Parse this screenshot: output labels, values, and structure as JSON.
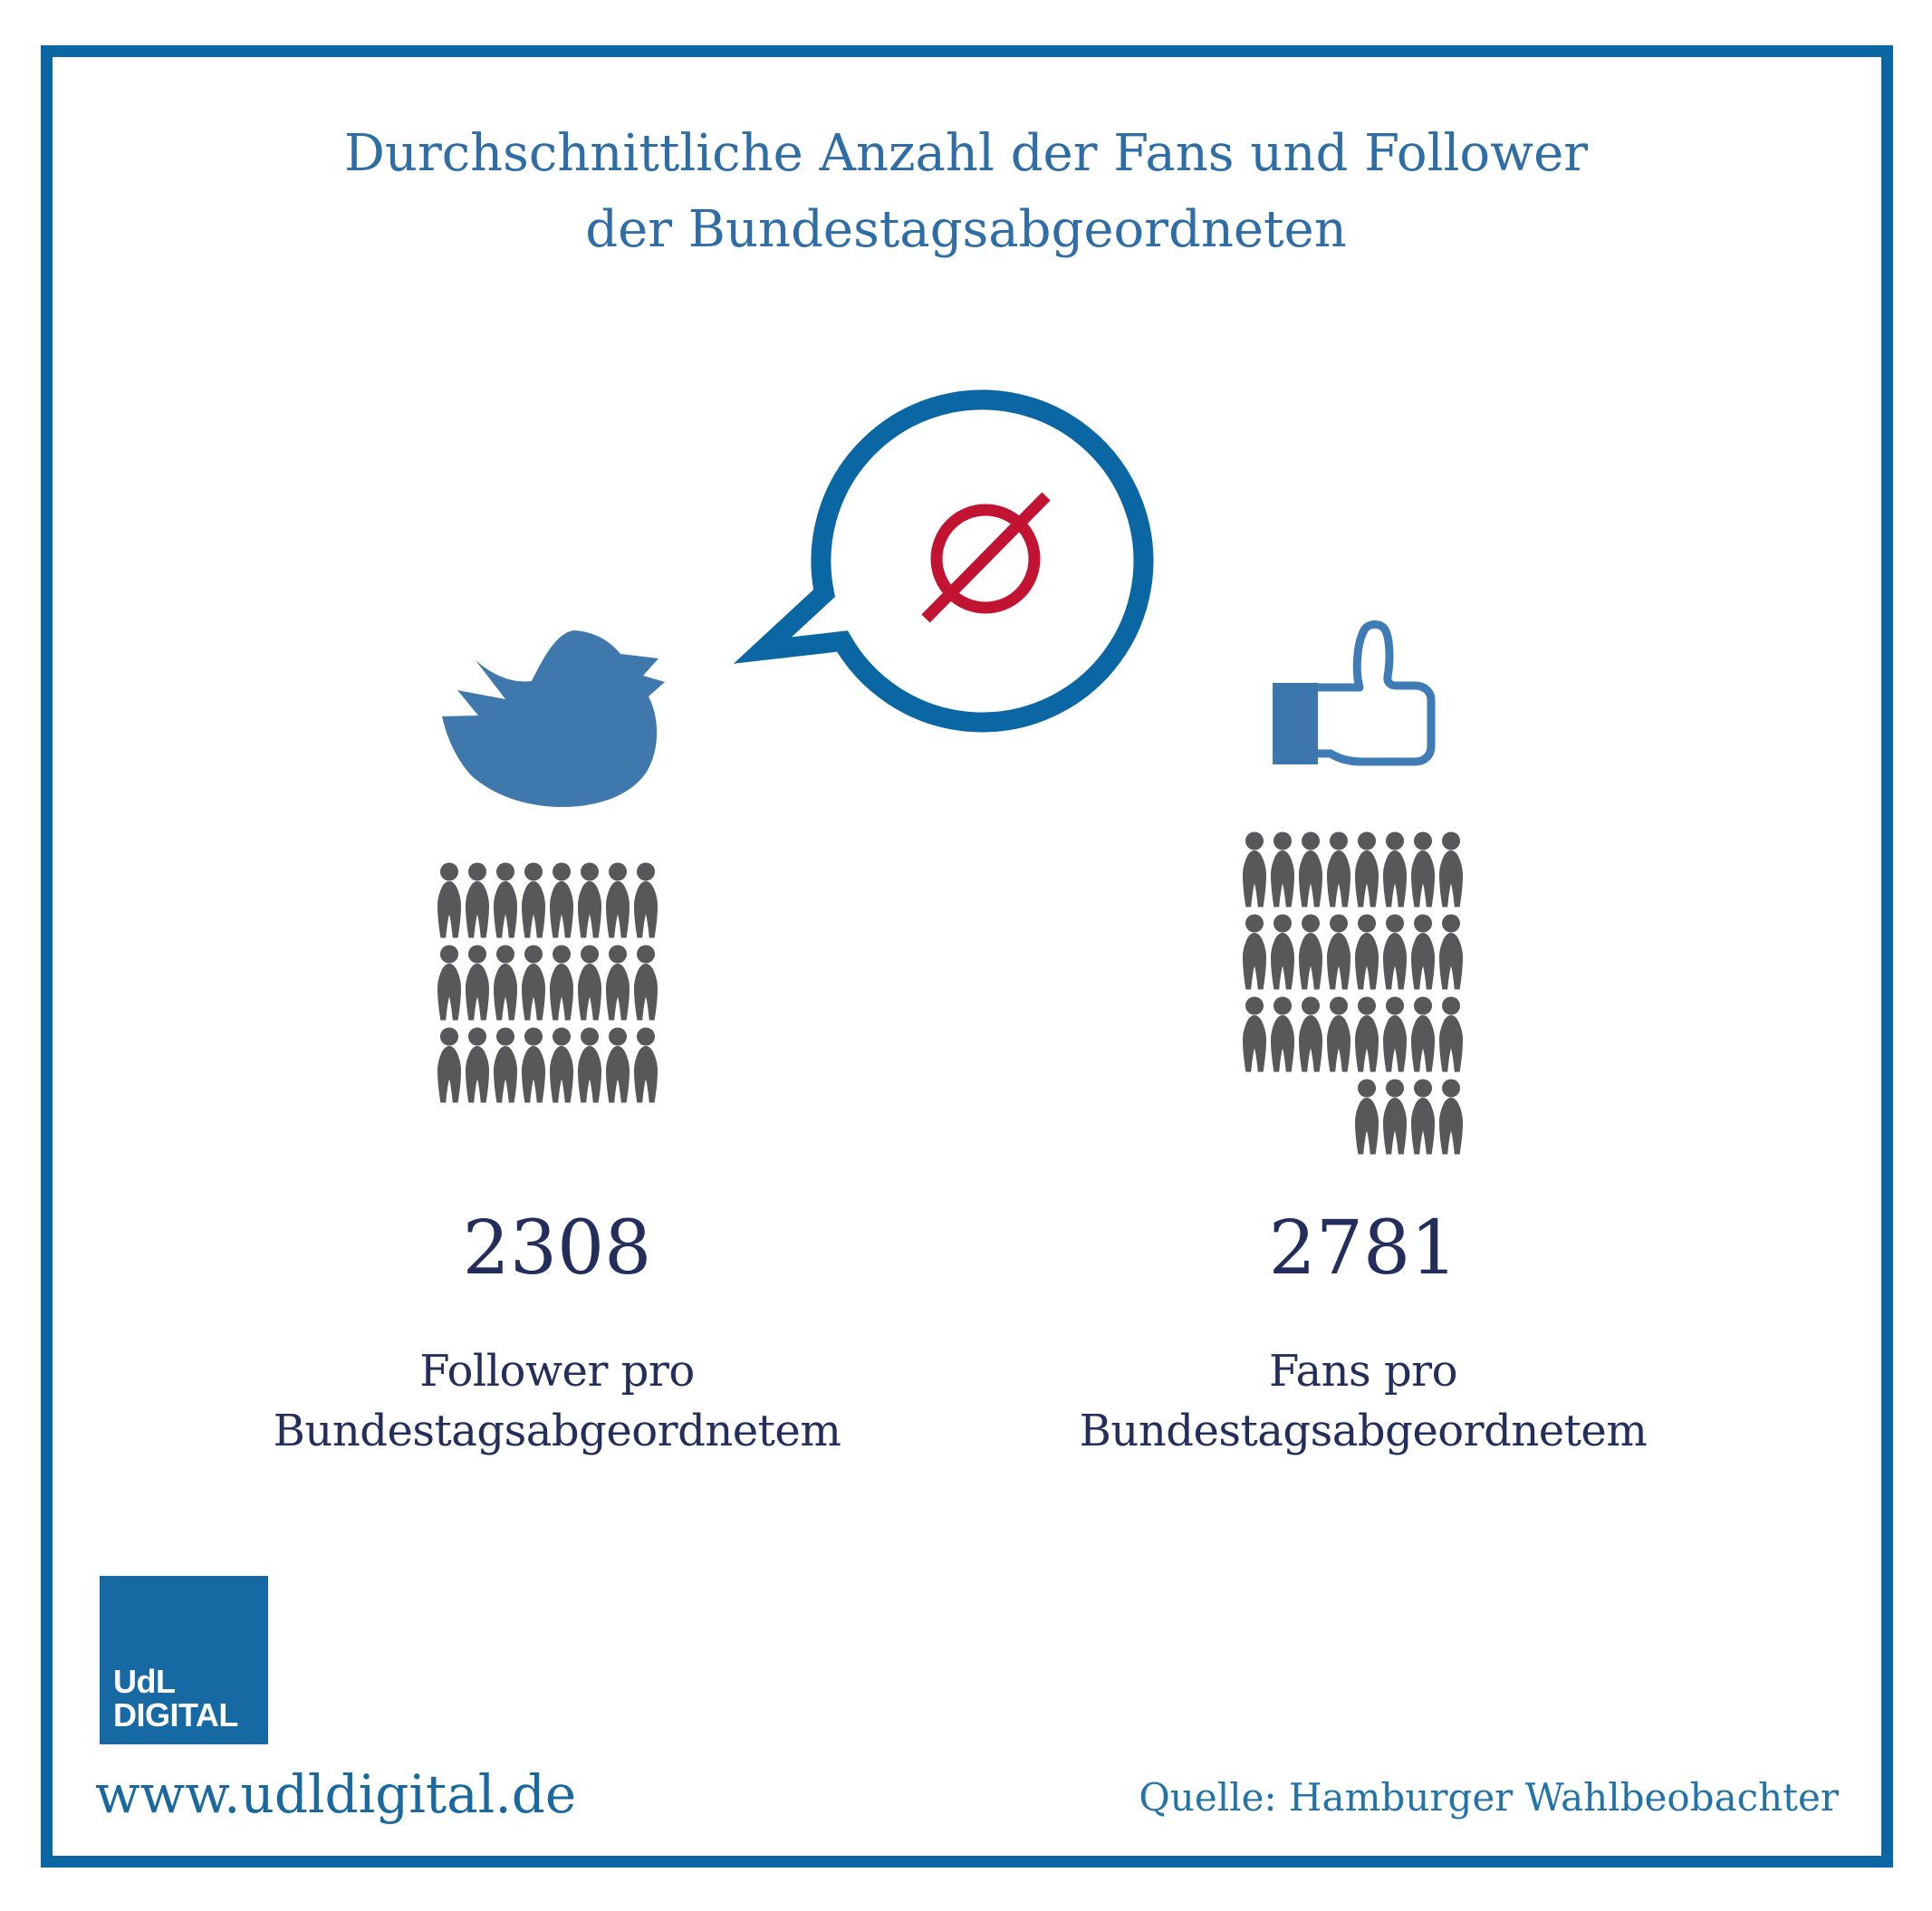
{
  "title": {
    "line1": "Durchschnittliche Anzahl der Fans und Follower",
    "line2": "der Bundestagsabgeordneten"
  },
  "speech_bubble": {
    "symbol": "Ø",
    "symbol_meaning": "average-sign",
    "symbol_color": "#c21432",
    "bubble_color": "#0a67a3"
  },
  "left_column": {
    "platform": "Twitter",
    "icon": "twitter-bird-icon",
    "value": "2308",
    "label_line1": "Follower pro",
    "label_line2": "Bundestagsabgeordnetem",
    "pictogram_rows": [
      8,
      8,
      8
    ],
    "people_icon_count": 24
  },
  "right_column": {
    "platform": "Facebook",
    "icon": "facebook-like-icon",
    "value": "2781",
    "label_line1": "Fans pro",
    "label_line2": "Bundestagsabgeordnetem",
    "pictogram_rows": [
      8,
      8,
      8,
      4
    ],
    "people_icon_count": 28
  },
  "footer": {
    "logo_line1": "UdL",
    "logo_line2": "DIGITAL",
    "website": "www.udldigital.de",
    "source": "Quelle: Hamburger Wahlbeobachter"
  },
  "colors": {
    "border": "#0a67a3",
    "title_text": "#2e6da6",
    "number_text": "#232e5c",
    "people_gray": "#58585a",
    "twitter_blue": "#3e78ad",
    "facebook_blue": "#3f7bb4",
    "average_red": "#c21432",
    "logo_blue": "#1769a4"
  },
  "chart_data": {
    "type": "bar",
    "style": "pictogram-unit-chart",
    "title": "Durchschnittliche Anzahl der Fans und Follower der Bundestagsabgeordneten",
    "categories": [
      "Follower pro Bundestagsabgeordnetem (Twitter)",
      "Fans pro Bundestagsabgeordnetem (Facebook)"
    ],
    "values": [
      2308,
      2781
    ],
    "unit_per_icon": 100,
    "icon_counts": [
      24,
      28
    ],
    "icon_rows": [
      [
        8,
        8,
        8
      ],
      [
        8,
        8,
        8,
        4
      ]
    ],
    "legend_position": "none",
    "grid": false,
    "source": "Hamburger Wahlbeobachter"
  }
}
